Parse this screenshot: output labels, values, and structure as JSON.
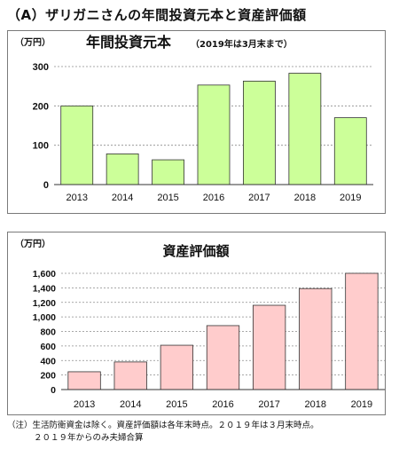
{
  "heading": "（A）ザリガニさんの年間投資元本と資産評価額",
  "chart_data": [
    {
      "type": "bar",
      "title": "年間投資元本",
      "subtitle": "（2019年は3月末まで）",
      "unit": "（万円）",
      "categories": [
        "2013",
        "2014",
        "2015",
        "2016",
        "2017",
        "2018",
        "2019"
      ],
      "values": [
        200,
        78,
        63,
        253,
        263,
        283,
        170
      ],
      "ylim": [
        0,
        300
      ],
      "yticks": [
        0,
        100,
        200,
        300
      ],
      "grid": true,
      "bar_fill": "#ccff99",
      "bar_stroke": "#333333"
    },
    {
      "type": "bar",
      "title": "資産評価額",
      "unit": "（万円）",
      "categories": [
        "2013",
        "2014",
        "2015",
        "2016",
        "2017",
        "2018",
        "2019"
      ],
      "values": [
        245,
        380,
        610,
        880,
        1160,
        1390,
        1600
      ],
      "ylim": [
        0,
        1600
      ],
      "yticks": [
        0,
        200,
        400,
        600,
        800,
        1000,
        1200,
        1400,
        1600
      ],
      "grid": true,
      "bar_fill": "#ffcccc",
      "bar_stroke": "#333333"
    }
  ],
  "note": {
    "line1": "（注）生活防衛資金は除く。資産評価額は各年末時点。２０１９年は３月末時点。",
    "line2": "２０１９年からのみ夫婦合算"
  }
}
